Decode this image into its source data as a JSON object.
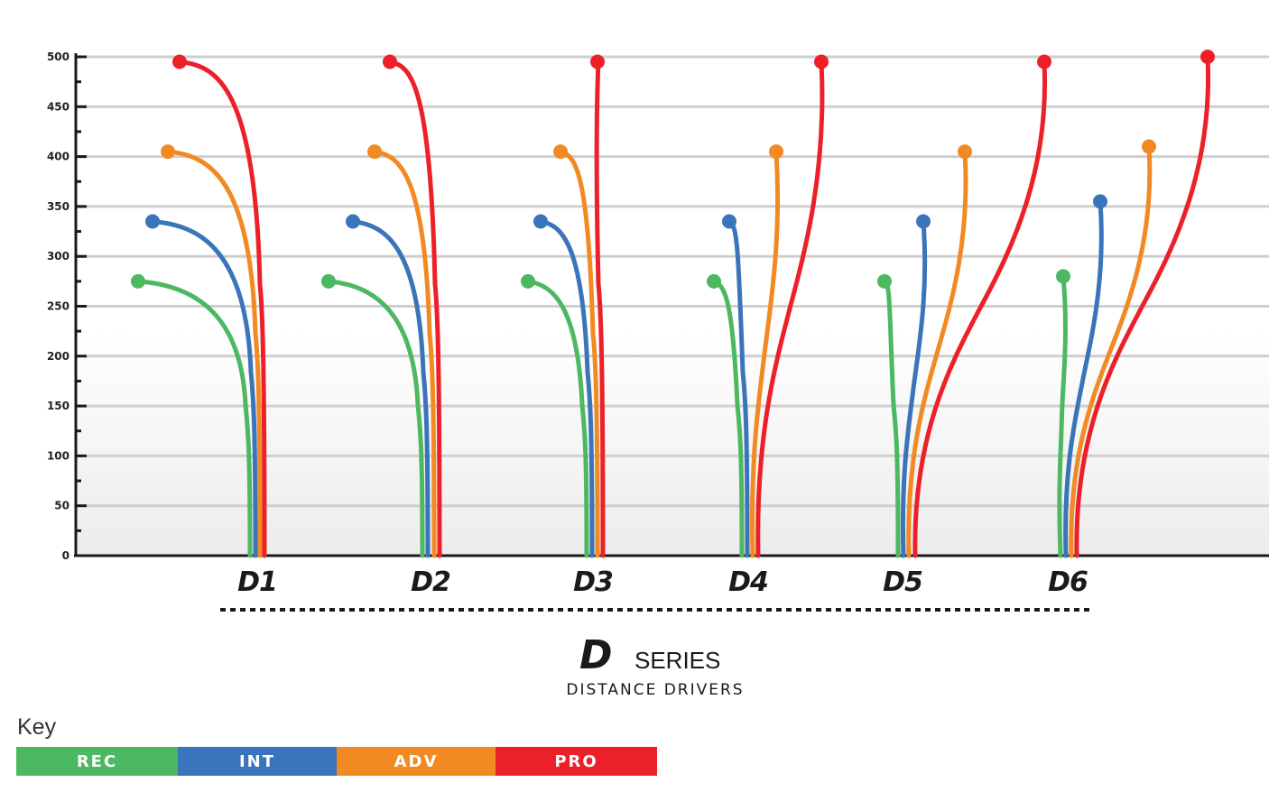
{
  "chart_data": {
    "type": "line",
    "ylim": [
      0,
      500
    ],
    "y_ticks": [
      0,
      50,
      100,
      150,
      200,
      250,
      300,
      350,
      400,
      450,
      500
    ],
    "grid": true,
    "categories": [
      "D1",
      "D2",
      "D3",
      "D4",
      "D5",
      "D6"
    ],
    "highlight_category": "D2",
    "series": [
      {
        "name": "REC",
        "color": "#4CB862",
        "values": [
          275,
          275,
          275,
          275,
          275,
          280
        ]
      },
      {
        "name": "INT",
        "color": "#3A74BA",
        "values": [
          335,
          335,
          335,
          335,
          335,
          355
        ]
      },
      {
        "name": "ADV",
        "color": "#F28A24",
        "values": [
          405,
          405,
          405,
          405,
          405,
          410
        ]
      },
      {
        "name": "PRO",
        "color": "#EC2028",
        "values": [
          495,
          495,
          495,
          495,
          495,
          500
        ]
      }
    ]
  },
  "brand": {
    "mark": "D",
    "word": "SERIES",
    "subtitle": "DISTANCE DRIVERS"
  },
  "key": {
    "title": "Key",
    "items": [
      {
        "label": "REC",
        "color": "#4CB862"
      },
      {
        "label": "INT",
        "color": "#3A74BA"
      },
      {
        "label": "ADV",
        "color": "#F28A24"
      },
      {
        "label": "PRO",
        "color": "#EC2028"
      }
    ]
  },
  "colors": {
    "highlight": "#7DBF3F",
    "axis": "#1a1a1a",
    "grid": "#cfcfcf"
  }
}
